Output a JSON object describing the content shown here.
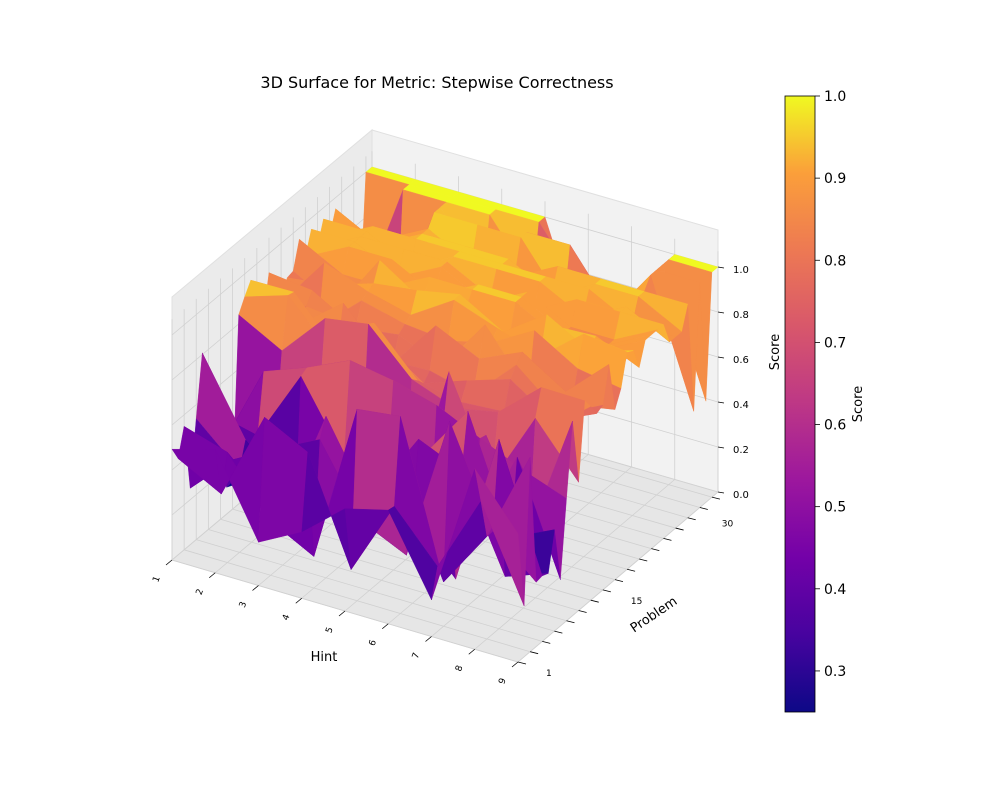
{
  "chart_data": {
    "type": "surface3d",
    "title": "3D Surface for Metric: Stepwise Correctness",
    "xlabel": "Hint",
    "ylabel": "Problem",
    "zlabel": "Score",
    "colorbar_label": "Score",
    "colormap": "plasma",
    "x_ticks": [
      "1",
      "2",
      "3",
      "4",
      "5",
      "6",
      "7",
      "8",
      "9"
    ],
    "y_ticks": [
      "1",
      "15",
      "30"
    ],
    "z_ticks": [
      "0.0",
      "0.2",
      "0.4",
      "0.6",
      "0.8",
      "1.0"
    ],
    "colorbar_ticks": [
      "0.3",
      "0.4",
      "0.5",
      "0.6",
      "0.7",
      "0.8",
      "0.9",
      "1.0"
    ],
    "x_values": [
      1,
      2,
      3,
      4,
      5,
      6,
      7,
      8,
      9
    ],
    "y_range": [
      1,
      34
    ],
    "zlim": [
      0.0,
      1.0
    ],
    "color_range": [
      0.25,
      1.0
    ],
    "grid": true,
    "colors": {
      "low": "#0d0887",
      "mid": "#cc4778",
      "high": "#f0f921"
    }
  }
}
